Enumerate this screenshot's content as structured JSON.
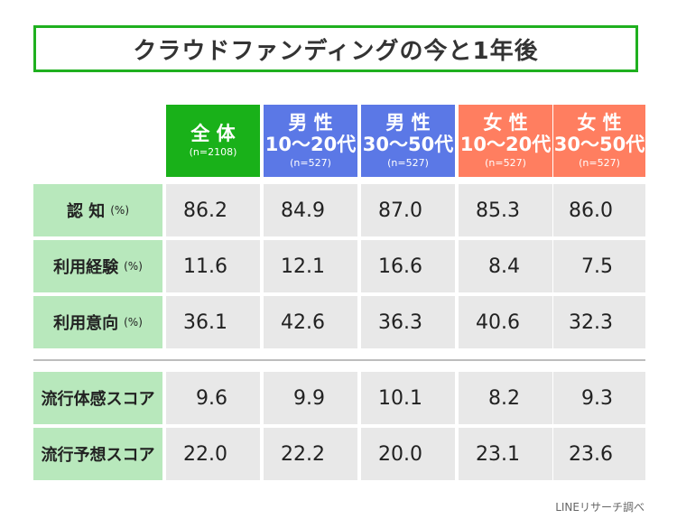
{
  "title": "クラウドファンディングの今と1年後",
  "columns": [
    {
      "line1": "全 体",
      "line2": "",
      "n": "(n=2108)",
      "color": "#19b119"
    },
    {
      "line1": "男 性",
      "line2": "10〜20代",
      "n": "(n=527)",
      "color": "#5b78e6"
    },
    {
      "line1": "男 性",
      "line2": "30〜50代",
      "n": "(n=527)",
      "color": "#5b78e6"
    },
    {
      "line1": "女 性",
      "line2": "10〜20代",
      "n": "(n=527)",
      "color": "#ff7e60"
    },
    {
      "line1": "女 性",
      "line2": "30〜50代",
      "n": "(n=527)",
      "color": "#ff7e60"
    }
  ],
  "rows": [
    {
      "label": "認 知",
      "unit": "(%)",
      "values": [
        "86.2",
        "84.9",
        "87.0",
        "85.3",
        "86.0"
      ]
    },
    {
      "label": "利用経験",
      "unit": "(%)",
      "values": [
        "11.6",
        "12.1",
        "16.6",
        "8.4",
        "7.5"
      ]
    },
    {
      "label": "利用意向",
      "unit": "(%)",
      "values": [
        "36.1",
        "42.6",
        "36.3",
        "40.6",
        "32.3"
      ]
    },
    {
      "label": "流行体感スコア",
      "unit": "",
      "values": [
        "9.6",
        "9.9",
        "10.1",
        "8.2",
        "9.3"
      ]
    },
    {
      "label": "流行予想スコア",
      "unit": "",
      "values": [
        "22.0",
        "22.2",
        "20.0",
        "23.1",
        "23.6"
      ]
    }
  ],
  "source": "LINEリサーチ調べ",
  "chart_data": {
    "type": "table",
    "title": "クラウドファンディングの今と1年後",
    "categories": [
      "全 体 (n=2108)",
      "男 性 10〜20代 (n=527)",
      "男 性 30〜50代 (n=527)",
      "女 性 10〜20代 (n=527)",
      "女 性 30〜50代 (n=527)"
    ],
    "series": [
      {
        "name": "認 知 (%)",
        "values": [
          86.2,
          84.9,
          87.0,
          85.3,
          86.0
        ]
      },
      {
        "name": "利用経験 (%)",
        "values": [
          11.6,
          12.1,
          16.6,
          8.4,
          7.5
        ]
      },
      {
        "name": "利用意向 (%)",
        "values": [
          36.1,
          42.6,
          36.3,
          40.6,
          32.3
        ]
      },
      {
        "name": "流行体感スコア",
        "values": [
          9.6,
          9.9,
          10.1,
          8.2,
          9.3
        ]
      },
      {
        "name": "流行予想スコア",
        "values": [
          22.0,
          22.2,
          20.0,
          23.1,
          23.6
        ]
      }
    ]
  }
}
